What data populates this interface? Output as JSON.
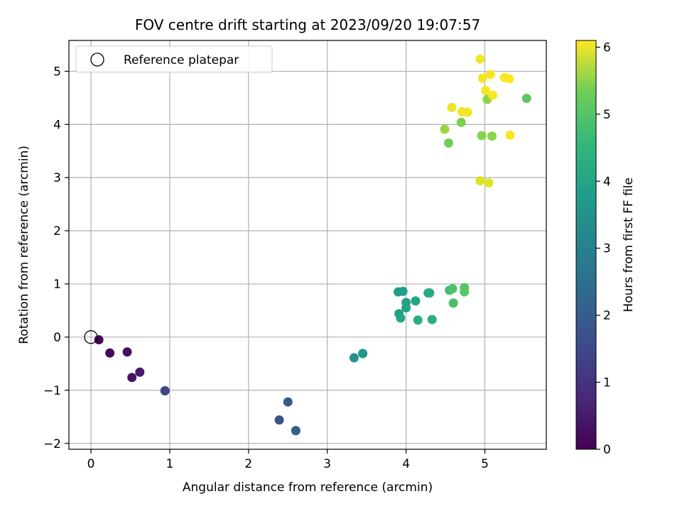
{
  "chart_data": {
    "type": "scatter",
    "title": "FOV centre drift starting at 2023/09/20 19:07:57",
    "xlabel": "Angular distance from reference (arcmin)",
    "ylabel": "Rotation from reference (arcmin)",
    "xlim": [
      -0.28,
      5.78
    ],
    "ylim": [
      -2.11,
      5.58
    ],
    "xticks": [
      0,
      1,
      2,
      3,
      4,
      5
    ],
    "yticks": [
      -2,
      -1,
      0,
      1,
      2,
      3,
      4,
      5
    ],
    "xtick_labels": [
      "0",
      "1",
      "2",
      "3",
      "4",
      "5"
    ],
    "ytick_labels": [
      "−2",
      "−1",
      "0",
      "1",
      "2",
      "3",
      "4",
      "5"
    ],
    "grid": true,
    "legend": {
      "placement": "top-left",
      "entries": [
        "Reference platepar"
      ]
    },
    "reference_point": {
      "x": 0,
      "y": 0
    },
    "colorbar": {
      "label": "Hours from first FF file",
      "range": [
        0,
        6.1
      ],
      "ticks": [
        0,
        1,
        2,
        3,
        4,
        5,
        6
      ],
      "tick_labels": [
        "0",
        "1",
        "2",
        "3",
        "4",
        "5",
        "6"
      ],
      "colormap": "viridis"
    },
    "points": [
      {
        "x": 0.1,
        "y": -0.05,
        "c": 0.05
      },
      {
        "x": 0.24,
        "y": -0.3,
        "c": 0.15
      },
      {
        "x": 0.46,
        "y": -0.28,
        "c": 0.25
      },
      {
        "x": 0.52,
        "y": -0.76,
        "c": 0.35
      },
      {
        "x": 0.62,
        "y": -0.66,
        "c": 0.45
      },
      {
        "x": 0.94,
        "y": -1.01,
        "c": 1.25
      },
      {
        "x": 0.94,
        "y": -1.01,
        "c": 1.3
      },
      {
        "x": 2.39,
        "y": -1.56,
        "c": 1.55
      },
      {
        "x": 2.5,
        "y": -1.22,
        "c": 1.65
      },
      {
        "x": 2.6,
        "y": -1.76,
        "c": 1.75
      },
      {
        "x": 2.6,
        "y": -1.76,
        "c": 1.8
      },
      {
        "x": 3.34,
        "y": -0.39,
        "c": 3.05
      },
      {
        "x": 3.45,
        "y": -0.31,
        "c": 3.15
      },
      {
        "x": 3.45,
        "y": -0.31,
        "c": 3.2
      },
      {
        "x": 3.9,
        "y": 0.85,
        "c": 3.4
      },
      {
        "x": 3.96,
        "y": 0.86,
        "c": 3.45
      },
      {
        "x": 3.91,
        "y": 0.44,
        "c": 3.5
      },
      {
        "x": 3.93,
        "y": 0.36,
        "c": 3.55
      },
      {
        "x": 4.0,
        "y": 0.65,
        "c": 3.5
      },
      {
        "x": 4.0,
        "y": 0.55,
        "c": 3.55
      },
      {
        "x": 4.12,
        "y": 0.68,
        "c": 3.6
      },
      {
        "x": 4.28,
        "y": 0.83,
        "c": 3.65
      },
      {
        "x": 4.3,
        "y": 0.83,
        "c": 3.7
      },
      {
        "x": 4.15,
        "y": 0.32,
        "c": 3.8
      },
      {
        "x": 4.33,
        "y": 0.33,
        "c": 3.85
      },
      {
        "x": 4.55,
        "y": 0.88,
        "c": 4.25
      },
      {
        "x": 4.59,
        "y": 0.91,
        "c": 4.35
      },
      {
        "x": 4.6,
        "y": 0.64,
        "c": 4.3
      },
      {
        "x": 4.74,
        "y": 0.93,
        "c": 4.45
      },
      {
        "x": 4.74,
        "y": 0.85,
        "c": 4.5
      },
      {
        "x": 5.53,
        "y": 4.49,
        "c": 4.55
      },
      {
        "x": 4.54,
        "y": 3.65,
        "c": 4.75
      },
      {
        "x": 4.7,
        "y": 4.04,
        "c": 4.85
      },
      {
        "x": 4.96,
        "y": 3.79,
        "c": 4.95
      },
      {
        "x": 5.09,
        "y": 3.78,
        "c": 5.0
      },
      {
        "x": 5.03,
        "y": 4.47,
        "c": 5.05
      },
      {
        "x": 4.49,
        "y": 3.91,
        "c": 5.15
      },
      {
        "x": 4.94,
        "y": 2.94,
        "c": 5.8
      },
      {
        "x": 5.05,
        "y": 2.9,
        "c": 5.85
      },
      {
        "x": 4.58,
        "y": 4.32,
        "c": 5.95
      },
      {
        "x": 4.71,
        "y": 4.24,
        "c": 6.0
      },
      {
        "x": 4.78,
        "y": 4.23,
        "c": 6.0
      },
      {
        "x": 5.32,
        "y": 3.8,
        "c": 6.05
      },
      {
        "x": 4.94,
        "y": 5.23,
        "c": 6.0
      },
      {
        "x": 4.97,
        "y": 4.87,
        "c": 6.0
      },
      {
        "x": 5.07,
        "y": 4.94,
        "c": 6.05
      },
      {
        "x": 5.01,
        "y": 4.64,
        "c": 6.05
      },
      {
        "x": 5.1,
        "y": 4.55,
        "c": 6.05
      },
      {
        "x": 5.25,
        "y": 4.88,
        "c": 6.1
      },
      {
        "x": 5.31,
        "y": 4.86,
        "c": 6.1
      }
    ]
  }
}
